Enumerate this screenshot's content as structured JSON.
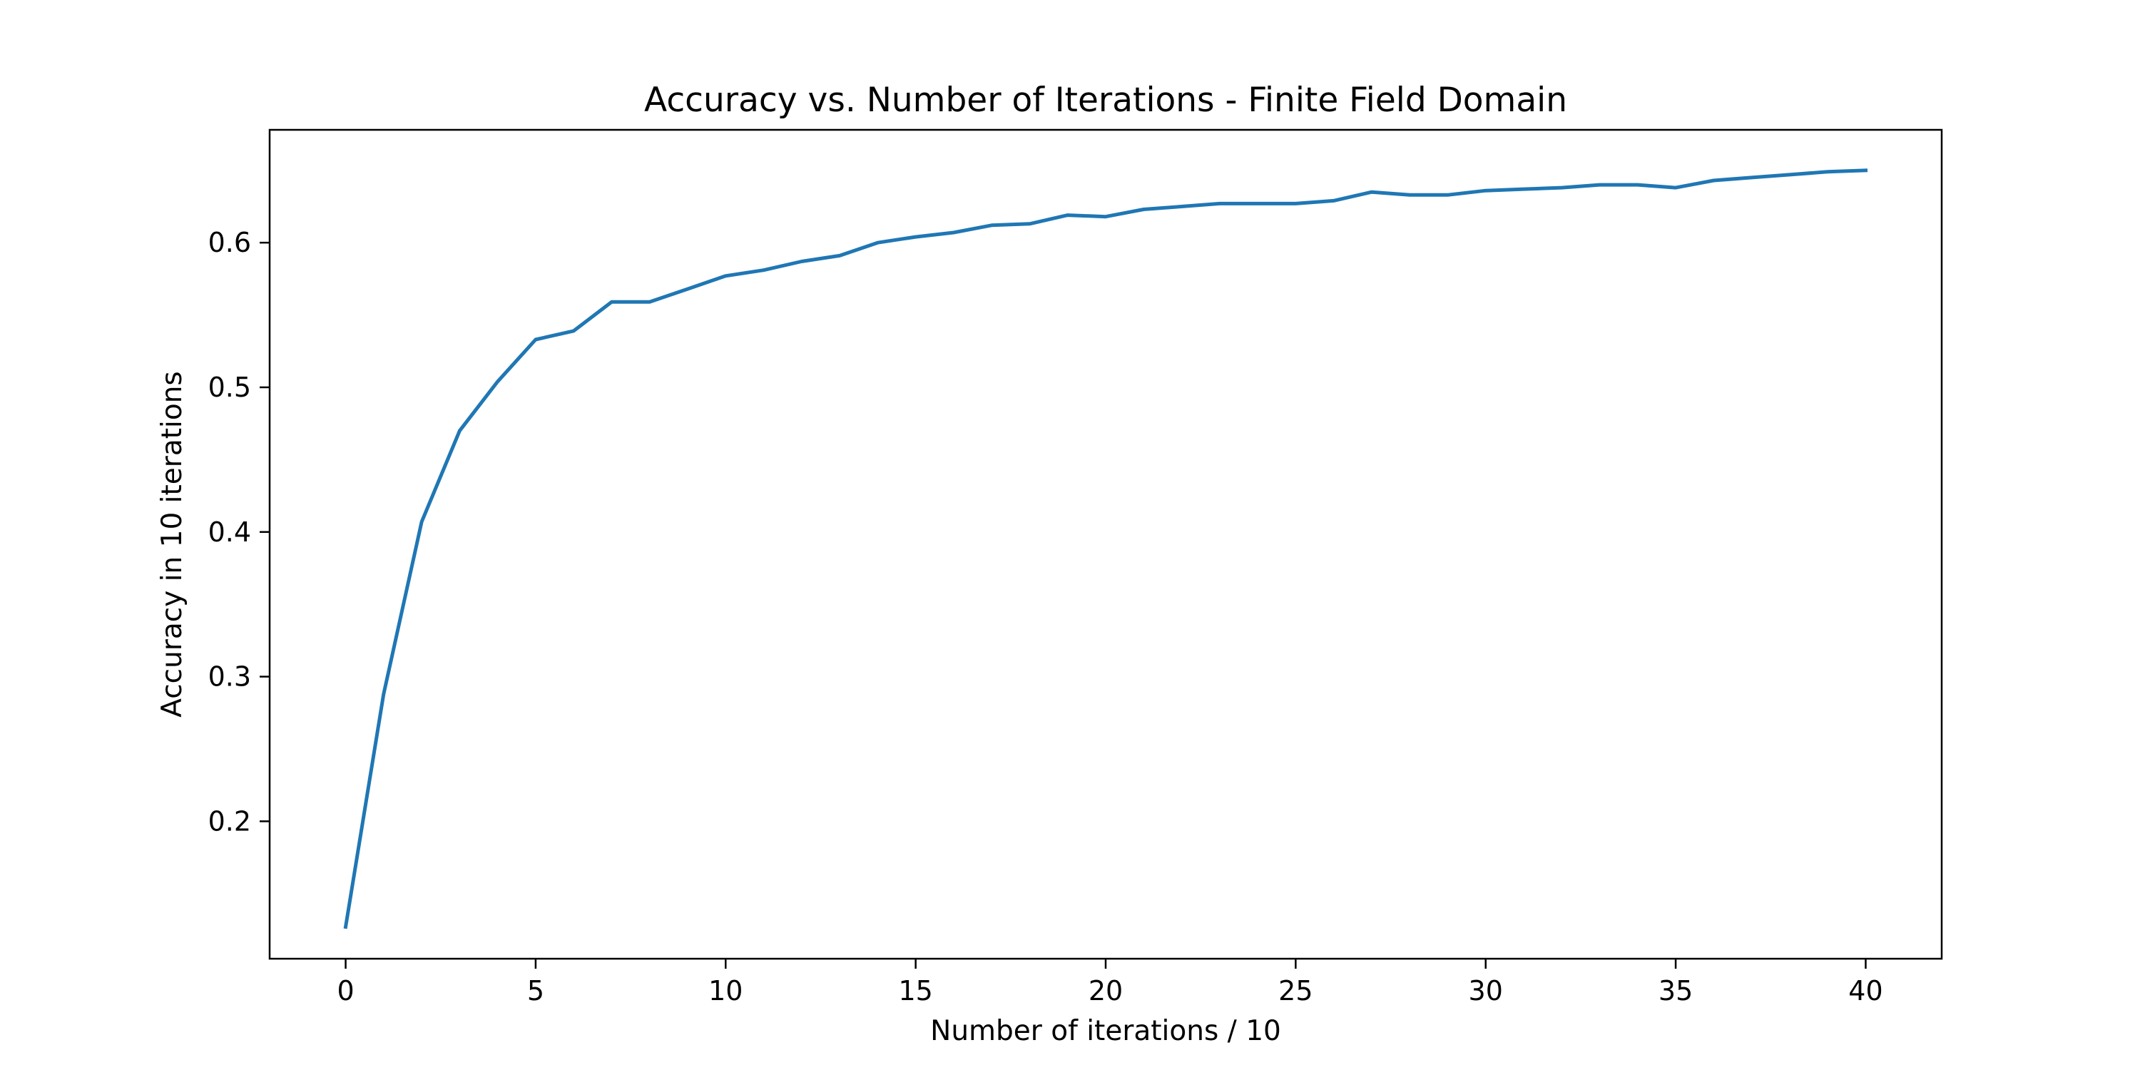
{
  "chart_data": {
    "type": "line",
    "title": "Accuracy vs. Number of Iterations - Finite Field Domain",
    "xlabel": "Number of iterations / 10",
    "ylabel": "Accuracy in 10 iterations",
    "xlim": [
      -2,
      42
    ],
    "ylim": [
      0.105,
      0.678
    ],
    "xticks": [
      0,
      5,
      10,
      15,
      20,
      25,
      30,
      35,
      40
    ],
    "yticks": [
      0.2,
      0.3,
      0.4,
      0.5,
      0.6
    ],
    "xtick_labels": [
      "0",
      "5",
      "10",
      "15",
      "20",
      "25",
      "30",
      "35",
      "40"
    ],
    "ytick_labels": [
      "0.2",
      "0.3",
      "0.4",
      "0.5",
      "0.6"
    ],
    "grid": false,
    "series": [
      {
        "color": "#1f77b4",
        "x": [
          0,
          1,
          2,
          3,
          4,
          5,
          6,
          7,
          8,
          9,
          10,
          11,
          12,
          13,
          14,
          15,
          16,
          17,
          18,
          19,
          20,
          21,
          22,
          23,
          24,
          25,
          26,
          27,
          28,
          29,
          30,
          31,
          32,
          33,
          34,
          35,
          36,
          37,
          38,
          39,
          40
        ],
        "values": [
          0.127,
          0.288,
          0.407,
          0.47,
          0.504,
          0.533,
          0.539,
          0.559,
          0.559,
          0.568,
          0.577,
          0.581,
          0.587,
          0.591,
          0.6,
          0.604,
          0.607,
          0.612,
          0.613,
          0.619,
          0.618,
          0.623,
          0.625,
          0.627,
          0.627,
          0.627,
          0.629,
          0.635,
          0.633,
          0.633,
          0.636,
          0.637,
          0.638,
          0.64,
          0.64,
          0.638,
          0.643,
          0.645,
          0.647,
          0.649,
          0.65
        ]
      }
    ]
  }
}
